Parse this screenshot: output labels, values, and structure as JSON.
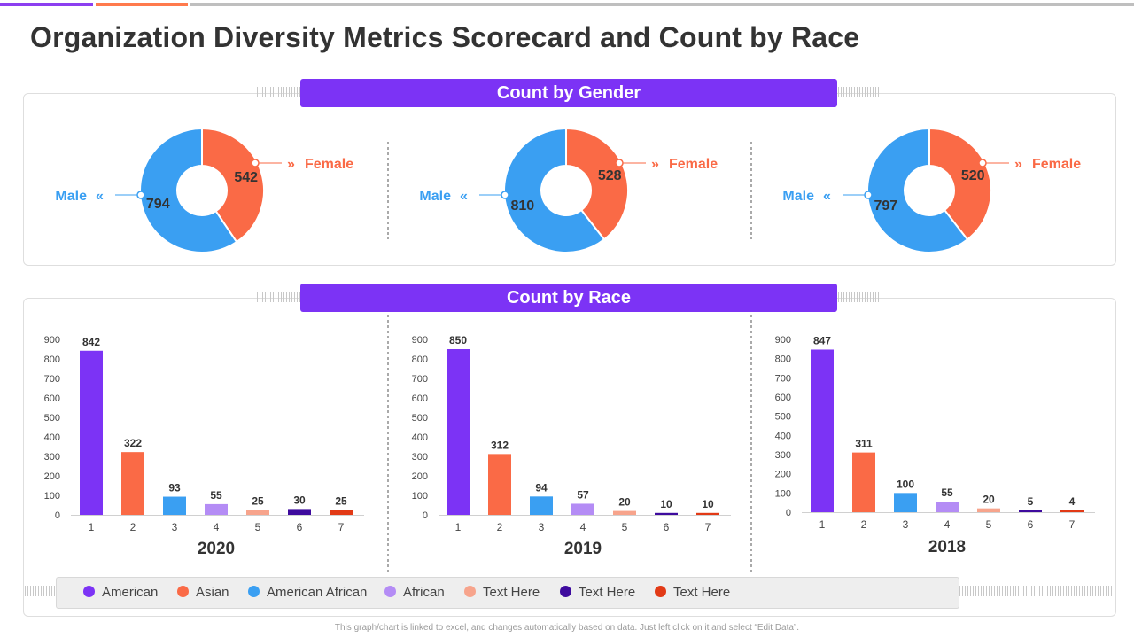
{
  "page": {
    "title": "Organization Diversity Metrics Scorecard and Count by Race",
    "gender_section_title": "Count by Gender",
    "race_section_title": "Count by Race",
    "footnote": "This graph/chart is linked to excel, and changes automatically based on data. Just left click on it and select “Edit Data”."
  },
  "colors": {
    "banner": "#7c33f5",
    "male": "#3a9ff2",
    "female": "#fa6a46",
    "races": [
      "#7c33f5",
      "#fa6a46",
      "#3a9ff2",
      "#b48cf5",
      "#f7a48c",
      "#3e0b9e",
      "#e23a16"
    ],
    "accent_bar_purple": "#8c3ff0",
    "accent_bar_orange": "#ff7a4d",
    "accent_bar_gray": "#bfbfbf"
  },
  "legend": {
    "items": [
      "American",
      "Asian",
      "American African",
      "African",
      "Text Here",
      "Text Here",
      "Text Here"
    ]
  },
  "chart_data": [
    {
      "type": "pie",
      "donut": true,
      "title": "Count by Gender",
      "labels": [
        "Female",
        "Male"
      ],
      "values": [
        542,
        794
      ]
    },
    {
      "type": "pie",
      "donut": true,
      "title": "Count by Gender",
      "labels": [
        "Female",
        "Male"
      ],
      "values": [
        528,
        810
      ]
    },
    {
      "type": "pie",
      "donut": true,
      "title": "Count by Gender",
      "labels": [
        "Female",
        "Male"
      ],
      "values": [
        520,
        797
      ]
    },
    {
      "type": "bar",
      "title": "2020",
      "categories": [
        "1",
        "2",
        "3",
        "4",
        "5",
        "6",
        "7"
      ],
      "values": [
        842,
        322,
        93,
        55,
        25,
        30,
        25
      ],
      "ylim": [
        0,
        900
      ],
      "yticks": [
        0,
        100,
        200,
        300,
        400,
        500,
        600,
        700,
        800,
        900
      ],
      "series_names": [
        "American",
        "Asian",
        "American African",
        "African",
        "Text Here",
        "Text Here",
        "Text Here"
      ]
    },
    {
      "type": "bar",
      "title": "2019",
      "categories": [
        "1",
        "2",
        "3",
        "4",
        "5",
        "6",
        "7"
      ],
      "values": [
        850,
        312,
        94,
        57,
        20,
        10,
        10
      ],
      "ylim": [
        0,
        900
      ],
      "yticks": [
        0,
        100,
        200,
        300,
        400,
        500,
        600,
        700,
        800,
        900
      ],
      "series_names": [
        "American",
        "Asian",
        "American African",
        "African",
        "Text Here",
        "Text Here",
        "Text Here"
      ]
    },
    {
      "type": "bar",
      "title": "2018",
      "categories": [
        "1",
        "2",
        "3",
        "4",
        "5",
        "6",
        "7"
      ],
      "values": [
        847,
        311,
        100,
        55,
        20,
        5,
        4
      ],
      "ylim": [
        0,
        900
      ],
      "yticks": [
        0,
        100,
        200,
        300,
        400,
        500,
        600,
        700,
        800,
        900
      ],
      "series_names": [
        "American",
        "Asian",
        "American African",
        "African",
        "Text Here",
        "Text Here",
        "Text Here"
      ]
    }
  ]
}
